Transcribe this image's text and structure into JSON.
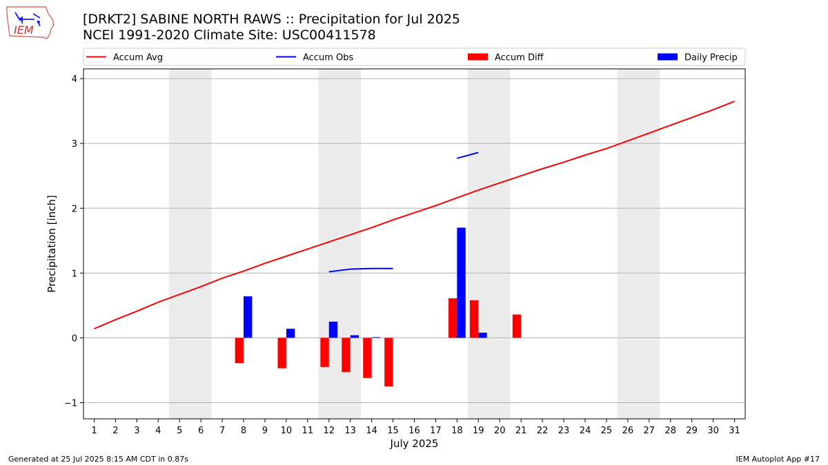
{
  "header": {
    "title_line1": "[DRKT2] SABINE NORTH RAWS :: Precipitation for Jul 2025",
    "title_line2": "NCEI 1991-2020 Climate Site: USC00411578",
    "logo_text": "IEM"
  },
  "footer": {
    "generated": "Generated at 25 Jul 2025 8:15 AM CDT in 0.87s",
    "app": "IEM Autoplot App #17"
  },
  "colors": {
    "avg": "#ff0000",
    "obs": "#0000ff",
    "diff": "#ff0000",
    "daily": "#0000ff",
    "weekend_band": "#ececec",
    "grid": "#b0b0b0"
  },
  "chart_data": {
    "type": "bar",
    "xlabel": "July 2025",
    "ylabel": "Precipitation [inch]",
    "xlim": [
      0.5,
      31.5
    ],
    "ylim": [
      -1.25,
      4.15
    ],
    "yticks": [
      -1,
      0,
      1,
      2,
      3,
      4
    ],
    "ytick_labels": [
      "−1",
      "0",
      "1",
      "2",
      "3",
      "4"
    ],
    "xticks": [
      1,
      2,
      3,
      4,
      5,
      6,
      7,
      8,
      9,
      10,
      11,
      12,
      13,
      14,
      15,
      16,
      17,
      18,
      19,
      20,
      21,
      22,
      23,
      24,
      25,
      26,
      27,
      28,
      29,
      30,
      31
    ],
    "grid": "horizontal",
    "weekend_days": [
      5,
      6,
      12,
      13,
      19,
      20,
      26,
      27
    ],
    "legend": {
      "placement": "top",
      "entries": [
        {
          "label": "Accum Avg",
          "kind": "line",
          "color": "#ff0000"
        },
        {
          "label": "Accum Obs",
          "kind": "line",
          "color": "#0000ff"
        },
        {
          "label": "Accum Diff",
          "kind": "bar",
          "color": "#ff0000"
        },
        {
          "label": "Daily Precip",
          "kind": "bar",
          "color": "#0000ff"
        }
      ]
    },
    "accum_avg": {
      "days": [
        1,
        2,
        3,
        4,
        5,
        6,
        7,
        8,
        9,
        10,
        11,
        12,
        13,
        14,
        15,
        16,
        17,
        18,
        19,
        20,
        21,
        22,
        23,
        24,
        25,
        26,
        27,
        28,
        29,
        30,
        31
      ],
      "values": [
        0.14,
        0.28,
        0.41,
        0.55,
        0.67,
        0.79,
        0.92,
        1.03,
        1.15,
        1.26,
        1.37,
        1.48,
        1.59,
        1.7,
        1.82,
        1.93,
        2.04,
        2.16,
        2.28,
        2.39,
        2.5,
        2.61,
        2.71,
        2.82,
        2.92,
        3.04,
        3.16,
        3.28,
        3.4,
        3.52,
        3.65
      ]
    },
    "accum_obs_segments": [
      {
        "days": [
          12,
          13,
          14,
          15
        ],
        "values": [
          1.02,
          1.06,
          1.07,
          1.07
        ]
      },
      {
        "days": [
          18,
          19
        ],
        "values": [
          2.77,
          2.86
        ]
      }
    ],
    "accum_diff": {
      "days": [
        8,
        10,
        12,
        13,
        14,
        15,
        18,
        19,
        21
      ],
      "values": [
        -0.39,
        -0.47,
        -0.45,
        -0.53,
        -0.62,
        -0.75,
        0.61,
        0.58,
        0.36
      ]
    },
    "daily_precip": {
      "days": [
        8,
        10,
        12,
        13,
        14,
        18,
        19
      ],
      "values": [
        0.64,
        0.14,
        0.25,
        0.04,
        0.01,
        1.7,
        0.08
      ]
    }
  }
}
